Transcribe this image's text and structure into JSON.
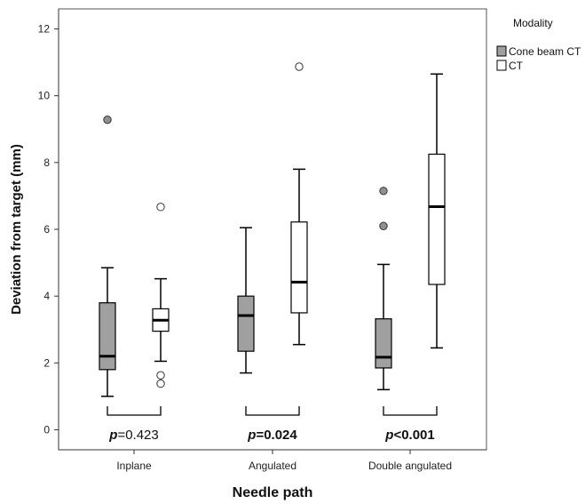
{
  "chart_data": {
    "type": "boxplot",
    "xlabel": "Needle path",
    "ylabel": "Deviation from target (mm)",
    "ylim": [
      -0.6,
      12.6
    ],
    "yticks": [
      0,
      2,
      4,
      6,
      8,
      10,
      12
    ],
    "categories": [
      "Inplane",
      "Angulated",
      "Double angulated"
    ],
    "legend": {
      "title": "Modality",
      "position": "right"
    },
    "series": [
      {
        "name": "Cone beam CT",
        "color": "#a0a0a0",
        "outlier_fill": "#909090",
        "boxes": [
          {
            "whisker_low": 1.0,
            "q1": 1.8,
            "median": 2.2,
            "q3": 3.8,
            "whisker_high": 4.85,
            "outliers": [
              9.28
            ]
          },
          {
            "whisker_low": 1.7,
            "q1": 2.35,
            "median": 3.42,
            "q3": 4.0,
            "whisker_high": 6.05,
            "outliers": []
          },
          {
            "whisker_low": 1.2,
            "q1": 1.85,
            "median": 2.17,
            "q3": 3.32,
            "whisker_high": 4.95,
            "outliers": [
              7.15,
              6.1
            ]
          }
        ]
      },
      {
        "name": "CT",
        "color": "#ffffff",
        "outlier_fill": "#ffffff",
        "boxes": [
          {
            "whisker_low": 2.05,
            "q1": 2.95,
            "median": 3.28,
            "q3": 3.62,
            "whisker_high": 4.52,
            "outliers": [
              6.67,
              1.63,
              1.38
            ]
          },
          {
            "whisker_low": 2.55,
            "q1": 3.5,
            "median": 4.42,
            "q3": 6.22,
            "whisker_high": 7.8,
            "outliers": [
              10.87
            ]
          },
          {
            "whisker_low": 2.45,
            "q1": 4.35,
            "median": 6.68,
            "q3": 8.25,
            "whisker_high": 10.65,
            "outliers": []
          }
        ]
      }
    ],
    "annotations": [
      {
        "label": "p",
        "value": "=0.423",
        "bold_value": false
      },
      {
        "label": "p",
        "value": "=0.024",
        "bold_value": true
      },
      {
        "label": "p",
        "value": "<0.001",
        "bold_value": true
      }
    ]
  }
}
